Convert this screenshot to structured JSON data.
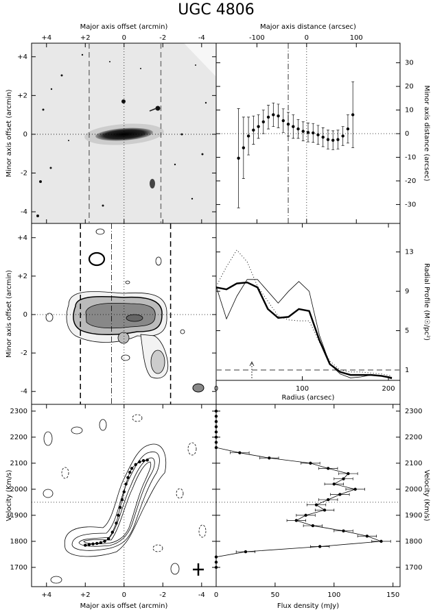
{
  "title": "UGC 4806",
  "chart_data": [
    {
      "type": "image",
      "xlabel": "Major axis offset (arcmin)",
      "ylabel": "Minor axis offset (arcmin)",
      "xlim": [
        4.77,
        -4.75
      ],
      "ylim": [
        -4.6,
        4.7
      ],
      "xticks": [
        {
          "value": 4,
          "label": "+4"
        },
        {
          "value": 2,
          "label": "+2"
        },
        0,
        -2,
        -4
      ],
      "yticks": [
        {
          "value": 4,
          "label": "+4"
        },
        {
          "value": 2,
          "label": "+2"
        },
        0,
        -2,
        -4
      ],
      "vlines": [
        {
          "value": 1.8,
          "style": "dashed"
        },
        {
          "value": 0,
          "style": "dotted"
        },
        {
          "value": -1.9,
          "style": "dashed"
        }
      ],
      "hlines": [
        {
          "value": 0,
          "style": "dotted"
        }
      ]
    },
    {
      "type": "scatter",
      "xlabel": "Major axis distance (arcsec)",
      "ylabel": "Minor axis distance (arcsec)",
      "xlim": [
        -182,
        188
      ],
      "ylim": [
        -38,
        38.3
      ],
      "xticks": [
        -100,
        0,
        100
      ],
      "yticks": [
        30,
        20,
        10,
        0,
        -10,
        -20,
        -30
      ],
      "vlines": [
        {
          "value": -37,
          "style": "dashdot"
        },
        {
          "value": 0,
          "style": "dotted"
        }
      ],
      "hlines": [
        {
          "value": 0,
          "style": "dotted"
        }
      ],
      "series": [
        {
          "style": "points",
          "color": "#000",
          "x": [
            -137,
            -127,
            -117,
            -107,
            -97,
            -87,
            -77,
            -67,
            -57,
            -47,
            -37,
            -27,
            -17,
            -7,
            3,
            13,
            23,
            33,
            43,
            53,
            63,
            73,
            83,
            93
          ],
          "values": [
            -10.4,
            -6,
            -1,
            1.5,
            3,
            5,
            7,
            8,
            7.5,
            5.5,
            4,
            3,
            2,
            1,
            0.5,
            0.3,
            -0.5,
            -1.5,
            -2.5,
            -2.8,
            -2.5,
            -1,
            2,
            8
          ],
          "errors": [
            21,
            13,
            8,
            6,
            5,
            5,
            5,
            5,
            5,
            5,
            5,
            5,
            4,
            4,
            4,
            4,
            4,
            4,
            4,
            4,
            4,
            4,
            6,
            14
          ]
        }
      ]
    },
    {
      "type": "contour",
      "ylabel": "Minor axis offset (arcmin)",
      "xlim": [
        4.77,
        -4.75
      ],
      "ylim": [
        -4.67,
        4.74
      ],
      "yticks": [
        {
          "value": 4,
          "label": "+4"
        },
        {
          "value": 2,
          "label": "+2"
        },
        0,
        -2,
        -4
      ],
      "vlines": [
        {
          "value": 2.25,
          "style": "dashed"
        },
        {
          "value": 0.65,
          "style": "dashdot"
        },
        {
          "value": 0,
          "style": "dotted"
        },
        {
          "value": -2.4,
          "style": "dashed"
        }
      ],
      "hlines": [
        {
          "value": 0,
          "style": "dotted"
        }
      ]
    },
    {
      "type": "line",
      "xlabel": "Radius (arcsec)",
      "ylabel": "Radial Profile (M☉/pc²)",
      "xlim": [
        0,
        213.5
      ],
      "ylim": [
        -0.05,
        15.9
      ],
      "xticks": [
        0,
        100,
        200
      ],
      "yticks": [
        1,
        5,
        9,
        13
      ],
      "hlines": [
        {
          "value": 1,
          "style": "dashed"
        }
      ],
      "x": [
        0,
        12,
        24,
        36,
        48,
        60,
        72,
        84,
        96,
        108,
        120,
        132,
        144,
        156,
        168,
        180,
        192,
        204
      ],
      "series": [
        {
          "style": "thick",
          "color": "#000",
          "values": [
            9.4,
            9.2,
            9.8,
            9.9,
            9.4,
            7.2,
            6.3,
            6.4,
            7.2,
            7.0,
            4.0,
            1.6,
            0.8,
            0.5,
            0.5,
            0.5,
            0.4,
            0.2
          ]
        },
        {
          "style": "thin",
          "color": "#000",
          "values": [
            9.5,
            6.2,
            8.5,
            10.2,
            10.2,
            9.0,
            7.8,
            9.0,
            10.0,
            9.0,
            4.5,
            1.6,
            0.6,
            0.2,
            0.3,
            0.5,
            0.4,
            0.1
          ]
        },
        {
          "style": "dotted",
          "color": "#000",
          "values": [
            9.5,
            11.5,
            13.2,
            12.0,
            9.5,
            8.0,
            6.5,
            6.1,
            6.0,
            6.0,
            3.8,
            1.9,
            1.0,
            0.8,
            0.8,
            0.7,
            0.6,
            0.4
          ]
        }
      ]
    },
    {
      "type": "contour",
      "xlabel": "Major axis offset (arcmin)",
      "ylabel": "Velocity (Km/s)",
      "xlim": [
        4.77,
        -4.75
      ],
      "ylim": [
        1626,
        2326
      ],
      "xticks": [
        {
          "value": 4,
          "label": "+4"
        },
        {
          "value": 2,
          "label": "+2"
        },
        0,
        -2,
        -4
      ],
      "yticks": [
        1700,
        1800,
        1900,
        2000,
        2100,
        2200,
        2300
      ],
      "vlines": [
        {
          "value": 0,
          "style": "dotted"
        }
      ],
      "hlines": [
        {
          "value": 1950,
          "style": "dotted"
        }
      ],
      "series": [
        {
          "style": "points",
          "connect": true,
          "color": "#000",
          "x": [
            2.0,
            1.8,
            1.6,
            1.4,
            1.2,
            1.0,
            0.8,
            0.6,
            0.4,
            0.3,
            0.2,
            0.1,
            0.0,
            -0.1,
            -0.2,
            -0.3,
            -0.4,
            -0.6,
            -0.8,
            -1.0,
            -1.2
          ],
          "values": [
            1785,
            1788,
            1790,
            1792,
            1795,
            1800,
            1810,
            1835,
            1870,
            1900,
            1930,
            1960,
            1990,
            2020,
            2045,
            2065,
            2080,
            2095,
            2105,
            2110,
            2112
          ]
        }
      ]
    },
    {
      "type": "line",
      "orientation": "horizontal",
      "xlabel": "Flux density (mJy)",
      "ylabel": "Velocity (Km/s)",
      "xlim": [
        0,
        156
      ],
      "ylim": [
        1626,
        2326
      ],
      "xticks": [
        0,
        50,
        100,
        150
      ],
      "yticks": [
        1700,
        1800,
        1900,
        2000,
        2100,
        2200,
        2300
      ],
      "hlines": [
        {
          "value": 1950,
          "style": "dotted"
        }
      ],
      "series": [
        {
          "style": "points",
          "connect": true,
          "color": "#000",
          "y": [
            1700,
            1720,
            1740,
            1760,
            1780,
            1800,
            1820,
            1840,
            1860,
            1880,
            1900,
            1920,
            1940,
            1960,
            1980,
            2000,
            2020,
            2040,
            2060,
            2080,
            2100,
            2120,
            2140,
            2160,
            2180,
            2200,
            2220,
            2240,
            2260,
            2280,
            2300
          ],
          "values": [
            0,
            0,
            0,
            25,
            88,
            140,
            128,
            108,
            82,
            68,
            76,
            92,
            85,
            95,
            105,
            118,
            100,
            108,
            112,
            95,
            80,
            45,
            20,
            0,
            0,
            0,
            0,
            0,
            0,
            0,
            0
          ],
          "errors": [
            0,
            0,
            0,
            8,
            8,
            8,
            8,
            8,
            8,
            8,
            8,
            8,
            8,
            8,
            8,
            8,
            8,
            8,
            8,
            8,
            8,
            8,
            8,
            0,
            0,
            0,
            0,
            0,
            0,
            0,
            0
          ]
        }
      ]
    }
  ]
}
